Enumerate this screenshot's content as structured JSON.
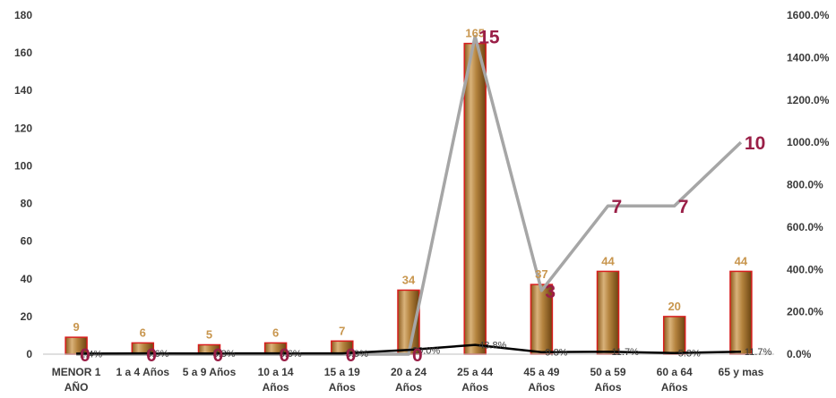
{
  "chart_data": {
    "type": "bar",
    "categories": [
      [
        "MENOR 1",
        "AÑO"
      ],
      [
        "1 a 4 Años"
      ],
      [
        "5 a 9 Años"
      ],
      [
        "10 a 14",
        "Años"
      ],
      [
        "15 a 19",
        "Años"
      ],
      [
        "20 a 24",
        "Años"
      ],
      [
        "25 a 44",
        "Años"
      ],
      [
        "45 a 49",
        "Años"
      ],
      [
        "50 a 59",
        "Años"
      ],
      [
        "60 a 64",
        "Años"
      ],
      [
        "65 y mas"
      ]
    ],
    "series": [
      {
        "type": "bar",
        "axis": "left",
        "color": "#c8964e",
        "values": [
          9,
          6,
          5,
          6,
          7,
          34,
          165,
          37,
          44,
          20,
          44
        ],
        "labels": [
          "9",
          "6",
          "5",
          "6",
          "7",
          "34",
          "165",
          "37",
          "44",
          "20",
          "44"
        ]
      },
      {
        "type": "line",
        "axis": "right",
        "color": "#a6a6a6",
        "values": [
          0,
          0,
          0,
          0,
          0,
          0,
          15,
          3,
          7,
          7,
          10
        ],
        "labels": [
          "0",
          "0",
          "0",
          "0",
          "0",
          "0",
          "15",
          "3",
          "7",
          "7",
          "10"
        ]
      },
      {
        "type": "line",
        "axis": "right",
        "color": "#000000",
        "values": [
          2.4,
          3.6,
          3.3,
          3.6,
          3.9,
          20.0,
          43.8,
          9.8,
          11.7,
          5.3,
          11.7
        ],
        "labels": [
          "2.4%",
          "3.6%",
          "3.3%",
          "3.6%",
          "3.9%",
          "20.0%",
          "43.8%",
          "9.8%",
          "11.7%",
          "5.3%",
          "11.7%"
        ]
      }
    ],
    "yaxis_left": {
      "min": 0,
      "max": 180,
      "ticks": [
        "0",
        "20",
        "40",
        "60",
        "80",
        "100",
        "120",
        "140",
        "160",
        "180"
      ]
    },
    "yaxis_right": {
      "min": 0,
      "max": 1600,
      "ticks": [
        "0.0%",
        "200.0%",
        "400.0%",
        "600.0%",
        "800.0%",
        "1000.0%",
        "1200.0%",
        "1400.0%",
        "1600.0%"
      ]
    },
    "grid": false,
    "legend": "none"
  }
}
